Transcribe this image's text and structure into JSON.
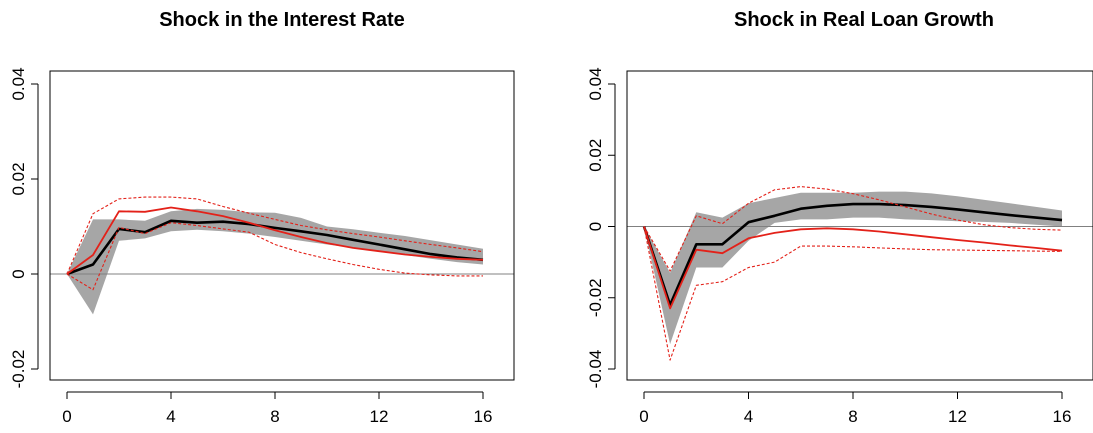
{
  "chart_data": [
    {
      "type": "line",
      "title": "Shock in the Interest Rate",
      "xlabel": "",
      "ylabel": "",
      "xlim": [
        0,
        16
      ],
      "ylim": [
        -0.02,
        0.04
      ],
      "xticks": [
        0,
        4,
        8,
        12,
        16
      ],
      "xtick_labels": [
        "0",
        "4",
        "8",
        "12",
        "16"
      ],
      "yticks": [
        -0.02,
        0,
        0.02,
        0.04
      ],
      "ytick_labels": [
        "-0.02",
        "0",
        "0.02",
        "0.04"
      ],
      "x": [
        0,
        1,
        2,
        3,
        4,
        5,
        6,
        7,
        8,
        9,
        10,
        11,
        12,
        13,
        14,
        15,
        16
      ],
      "zero_line": true,
      "band": {
        "color": "#a6a6a6",
        "lower": [
          0,
          -0.0085,
          0.007,
          0.0075,
          0.009,
          0.0093,
          0.009,
          0.0085,
          0.0078,
          0.007,
          0.0062,
          0.0055,
          0.0047,
          0.004,
          0.0032,
          0.0025,
          0.002
        ],
        "upper": [
          0,
          0.0115,
          0.0115,
          0.0112,
          0.0132,
          0.0137,
          0.0135,
          0.013,
          0.0129,
          0.0118,
          0.01,
          0.0094,
          0.0087,
          0.008,
          0.0071,
          0.0062,
          0.0053
        ]
      },
      "series": [
        {
          "role": "median",
          "color": "#000000",
          "style": "solid",
          "width": 2.6,
          "values": [
            0,
            0.002,
            0.0095,
            0.0088,
            0.0112,
            0.0108,
            0.011,
            0.0105,
            0.0097,
            0.009,
            0.0082,
            0.0072,
            0.0062,
            0.0052,
            0.0042,
            0.0035,
            0.003
          ]
        },
        {
          "role": "alt-median",
          "color": "#e32119",
          "style": "solid",
          "width": 1.8,
          "values": [
            0,
            0.004,
            0.0132,
            0.0131,
            0.014,
            0.0132,
            0.0122,
            0.0108,
            0.0092,
            0.0078,
            0.0065,
            0.0055,
            0.0048,
            0.0041,
            0.0036,
            0.0032,
            0.003
          ]
        },
        {
          "role": "alt-upper",
          "color": "#e32119",
          "style": "dashed",
          "width": 1.1,
          "values": [
            0,
            0.0127,
            0.0158,
            0.0162,
            0.0162,
            0.0158,
            0.0142,
            0.0128,
            0.0115,
            0.0102,
            0.0093,
            0.0085,
            0.0078,
            0.007,
            0.0062,
            0.0055,
            0.0047
          ]
        },
        {
          "role": "alt-lower",
          "color": "#e32119",
          "style": "dashed",
          "width": 1.1,
          "values": [
            0,
            -0.0033,
            0.0098,
            0.0085,
            0.0108,
            0.0102,
            0.0095,
            0.0088,
            0.0062,
            0.0045,
            0.0032,
            0.002,
            0.001,
            0.0002,
            -0.0002,
            -0.0004,
            -0.0004
          ]
        }
      ]
    },
    {
      "type": "line",
      "title": "Shock in Real Loan Growth",
      "xlabel": "",
      "ylabel": "",
      "xlim": [
        0,
        16
      ],
      "ylim": [
        -0.04,
        0.04
      ],
      "xticks": [
        0,
        4,
        8,
        12,
        16
      ],
      "xtick_labels": [
        "0",
        "4",
        "8",
        "12",
        "16"
      ],
      "yticks": [
        -0.04,
        -0.02,
        0,
        0.02,
        0.04
      ],
      "ytick_labels": [
        "-0.04",
        "-0.02",
        "0",
        "0.02",
        "0.04"
      ],
      "x": [
        0,
        1,
        2,
        3,
        4,
        5,
        6,
        7,
        8,
        9,
        10,
        11,
        12,
        13,
        14,
        15,
        16
      ],
      "zero_line": true,
      "band": {
        "color": "#a6a6a6",
        "lower": [
          0,
          -0.033,
          -0.0115,
          -0.0115,
          -0.004,
          0.001,
          0.002,
          0.002,
          0.0025,
          0.0025,
          0.002,
          0.0018,
          0.0015,
          0.0013,
          0.001,
          0.0005,
          0
        ],
        "upper": [
          0,
          -0.013,
          0.004,
          0.0025,
          0.0065,
          0.008,
          0.0095,
          0.0095,
          0.0095,
          0.0098,
          0.0098,
          0.0093,
          0.0085,
          0.0075,
          0.0065,
          0.0055,
          0.0045
        ]
      },
      "series": [
        {
          "role": "median",
          "color": "#000000",
          "style": "solid",
          "width": 2.6,
          "values": [
            0,
            -0.022,
            -0.005,
            -0.005,
            0.0012,
            0.003,
            0.005,
            0.0058,
            0.0063,
            0.0063,
            0.006,
            0.0055,
            0.0048,
            0.004,
            0.0032,
            0.0025,
            0.0018
          ]
        },
        {
          "role": "alt-median",
          "color": "#e32119",
          "style": "solid",
          "width": 1.8,
          "values": [
            0,
            -0.023,
            -0.0065,
            -0.0075,
            -0.0033,
            -0.0018,
            -0.0008,
            -0.0005,
            -0.0008,
            -0.0014,
            -0.0022,
            -0.003,
            -0.0038,
            -0.0045,
            -0.0053,
            -0.006,
            -0.0068
          ]
        },
        {
          "role": "alt-upper",
          "color": "#e32119",
          "style": "dashed",
          "width": 1.1,
          "values": [
            0,
            -0.0125,
            0.003,
            0.0008,
            0.0065,
            0.0103,
            0.0112,
            0.0105,
            0.0092,
            0.0075,
            0.0055,
            0.0035,
            0.0018,
            0.0005,
            -0.0003,
            -0.0008,
            -0.001
          ]
        },
        {
          "role": "alt-lower",
          "color": "#e32119",
          "style": "dashed",
          "width": 1.1,
          "values": [
            0,
            -0.0375,
            -0.0165,
            -0.0155,
            -0.0115,
            -0.01,
            -0.0055,
            -0.0055,
            -0.0057,
            -0.006,
            -0.0063,
            -0.0065,
            -0.0066,
            -0.0067,
            -0.0068,
            -0.0069,
            -0.007
          ]
        }
      ]
    }
  ]
}
